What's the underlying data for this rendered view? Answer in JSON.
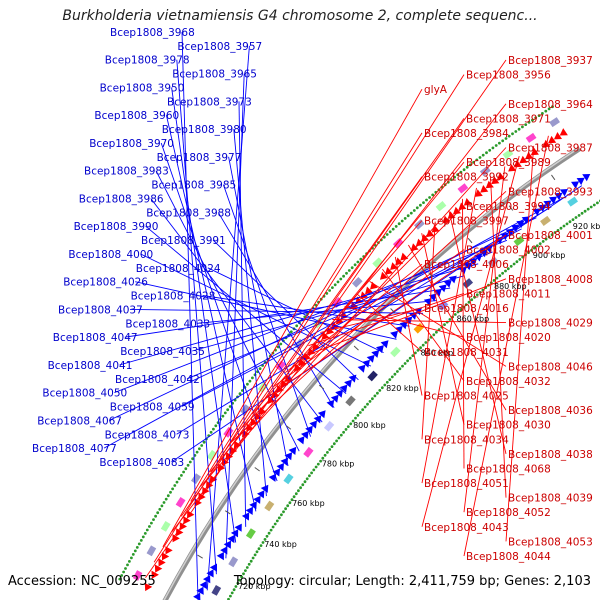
{
  "title": "Burkholderia vietnamiensis G4 chromosome 2, complete sequenc...",
  "footer": {
    "accession": "Accession: NC_009255",
    "summary": "Topology: circular; Length: 2,411,759 bp; Genes: 2,103"
  },
  "colors": {
    "backbone": "#909090",
    "forward": "#0000ff",
    "reverse": "#ff0000",
    "gc_dots": "#2a9a2a",
    "label_forward": "#0000cc",
    "label_reverse": "#cc0000"
  },
  "ticks": [
    "720 kbp",
    "740 kbp",
    "760 kbp",
    "780 kbp",
    "800 kbp",
    "820 kbp",
    "840 kbp",
    "860 kbp",
    "880 kbp",
    "900 kbp",
    "920 kbp"
  ],
  "labels_forward": [
    "Bcep1808_3968",
    "Bcep1808_3957",
    "Bcep1808_3978",
    "Bcep1808_3965",
    "Bcep1808_3950",
    "Bcep1808_3973",
    "Bcep1808_3960",
    "Bcep1808_3980",
    "Bcep1808_3970",
    "Bcep1808_3977",
    "Bcep1808_3983",
    "Bcep1808_3985",
    "Bcep1808_3986",
    "Bcep1808_3988",
    "Bcep1808_3990",
    "Bcep1808_3991",
    "Bcep1808_4000",
    "Bcep1808_4024",
    "Bcep1808_4026",
    "Bcep1808_4028",
    "Bcep1808_4037",
    "Bcep1808_4033",
    "Bcep1808_4047",
    "Bcep1808_4035",
    "Bcep1808_4041",
    "Bcep1808_4042",
    "Bcep1808_4050",
    "Bcep1808_4059",
    "Bcep1808_4067",
    "Bcep1808_4073",
    "Bcep1808_4077",
    "Bcep1808_4083"
  ],
  "labels_reverse": [
    "Bcep1808_3937",
    "Bcep1808_3956",
    "glyA",
    "Bcep1808_3964",
    "Bcep1808_3971",
    "Bcep1808_3984",
    "Bcep1808_3987",
    "Bcep1808_3989",
    "Bcep1808_3992",
    "Bcep1808_3993",
    "Bcep1808_3994",
    "Bcep1808_3997",
    "Bcep1808_4001",
    "Bcep1808_4002",
    "Bcep1808_4006",
    "Bcep1808_4008",
    "Bcep1808_4011",
    "Bcep1808_4016",
    "Bcep1808_4029",
    "Bcep1808_4020",
    "Bcep1808_4031",
    "Bcep1808_4046",
    "Bcep1808_4032",
    "Bcep1808_4025",
    "Bcep1808_4036",
    "Bcep1808_4030",
    "Bcep1808_4034",
    "Bcep1808_4038",
    "Bcep1808_4068",
    "Bcep1808_4051",
    "Bcep1808_4039",
    "Bcep1808_4052",
    "Bcep1808_4043",
    "Bcep1808_4053",
    "Bcep1808_4044"
  ]
}
